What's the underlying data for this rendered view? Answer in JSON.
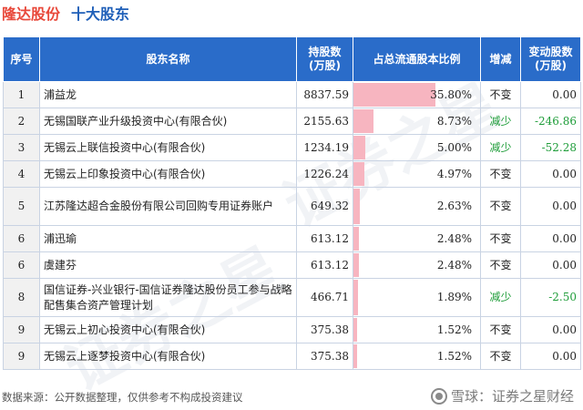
{
  "header": {
    "company": "隆达股份",
    "subtitle": "十大股东"
  },
  "table": {
    "columns": {
      "rank": "序号",
      "name": "股东名称",
      "shares_line1": "持股数",
      "shares_line2": "(万股)",
      "ratio": "占总流通股本比例",
      "change": "增减",
      "delta_line1": "变动股数",
      "delta_line2": "(万股)"
    },
    "rows": [
      {
        "rank": "1",
        "name": "浦益龙",
        "shares": "8837.59",
        "ratio": "35.80%",
        "ratio_value": 35.8,
        "change": "不变",
        "delta": "0.00"
      },
      {
        "rank": "2",
        "name": "无锡国联产业升级投资中心(有限合伙)",
        "shares": "2155.63",
        "ratio": "8.73%",
        "ratio_value": 8.73,
        "change": "减少",
        "delta": "-246.86"
      },
      {
        "rank": "3",
        "name": "无锡云上联信投资中心(有限合伙)",
        "shares": "1234.19",
        "ratio": "5.00%",
        "ratio_value": 5.0,
        "change": "减少",
        "delta": "-52.28"
      },
      {
        "rank": "4",
        "name": "无锡云上印象投资中心(有限合伙)",
        "shares": "1226.24",
        "ratio": "4.97%",
        "ratio_value": 4.97,
        "change": "不变",
        "delta": "0.00"
      },
      {
        "rank": "5",
        "name": "江苏隆达超合金股份有限公司回购专用证券账户",
        "shares": "649.32",
        "ratio": "2.63%",
        "ratio_value": 2.63,
        "change": "不变",
        "delta": "0.00"
      },
      {
        "rank": "6",
        "name": "浦迅瑜",
        "shares": "613.12",
        "ratio": "2.48%",
        "ratio_value": 2.48,
        "change": "不变",
        "delta": "0.00"
      },
      {
        "rank": "6",
        "name": "虞建芬",
        "shares": "613.12",
        "ratio": "2.48%",
        "ratio_value": 2.48,
        "change": "不变",
        "delta": "0.00"
      },
      {
        "rank": "8",
        "name": "国信证券-兴业银行-国信证券隆达股份员工参与战略配售集合资产管理计划",
        "shares": "466.71",
        "ratio": "1.89%",
        "ratio_value": 1.89,
        "change": "减少",
        "delta": "-2.50"
      },
      {
        "rank": "9",
        "name": "无锡云上初心投资中心(有限合伙)",
        "shares": "375.38",
        "ratio": "1.52%",
        "ratio_value": 1.52,
        "change": "不变",
        "delta": "0.00"
      },
      {
        "rank": "9",
        "name": "无锡云上逐梦投资中心(有限合伙)",
        "shares": "375.38",
        "ratio": "1.52%",
        "ratio_value": 1.52,
        "change": "不变",
        "delta": "0.00"
      }
    ],
    "colors": {
      "header_bg": "#2a6cc9",
      "bar": "#f7b5c0",
      "decrease": "#1f9d3a"
    }
  },
  "footer": {
    "source": "数据来源：公开数据整理，仅供参考不构成投资建议",
    "brand": "雪球：证券之星财经",
    "brand_icon": "snowball-icon"
  }
}
